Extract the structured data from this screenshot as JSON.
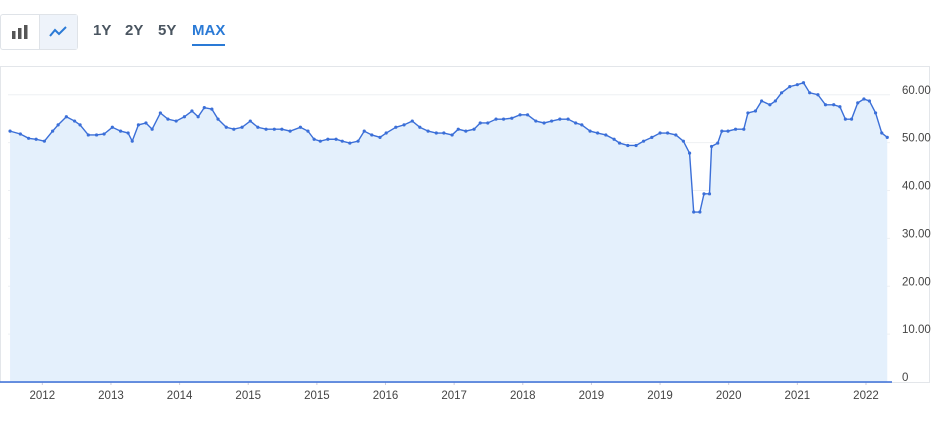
{
  "toolbar": {
    "ranges": [
      "1Y",
      "2Y",
      "5Y",
      "MAX"
    ],
    "selected": 3
  },
  "chart_data": {
    "type": "line",
    "series": [
      {
        "color": "#3b6fd8",
        "fill": "#e4f0fc",
        "x": [
          -0.47,
          -0.32,
          -0.2,
          -0.09,
          0.03,
          0.15,
          0.23,
          0.35,
          0.47,
          0.55,
          0.67,
          0.79,
          0.9,
          1.02,
          1.14,
          1.25,
          1.31,
          1.4,
          1.51,
          1.6,
          1.72,
          1.83,
          1.95,
          2.07,
          2.18,
          2.27,
          2.36,
          2.47,
          2.56,
          2.68,
          2.79,
          2.91,
          3.03,
          3.14,
          3.26,
          3.38,
          3.49,
          3.61,
          3.76,
          3.87,
          3.96,
          4.05,
          4.16,
          4.28,
          4.37,
          4.48,
          4.6,
          4.69,
          4.8,
          4.92,
          5.01,
          5.15,
          5.27,
          5.39,
          5.5,
          5.62,
          5.74,
          5.85,
          5.97,
          6.06,
          6.17,
          6.29,
          6.38,
          6.49,
          6.61,
          6.72,
          6.84,
          6.96,
          7.07,
          7.19,
          7.31,
          7.42,
          7.54,
          7.66,
          7.77,
          7.86,
          7.98,
          8.09,
          8.21,
          8.33,
          8.41,
          8.53,
          8.65,
          8.76,
          8.88,
          9.0,
          9.11,
          9.23,
          9.34,
          9.43,
          9.49,
          9.58,
          9.64,
          9.72,
          9.75,
          9.84,
          9.9,
          9.99,
          10.1,
          10.22,
          10.28,
          10.39,
          10.48,
          10.6,
          10.68,
          10.77,
          10.89,
          11.0,
          11.09,
          11.18,
          11.3,
          11.41,
          11.53,
          11.62,
          11.7,
          11.79,
          11.88,
          11.97,
          12.05,
          12.14,
          12.23,
          12.31
        ],
        "values": [
          52.4,
          51.8,
          50.9,
          50.7,
          50.3,
          52.4,
          53.7,
          55.4,
          54.5,
          53.7,
          51.6,
          51.6,
          51.8,
          53.2,
          52.4,
          52.0,
          50.3,
          53.7,
          54.1,
          52.8,
          56.2,
          54.9,
          54.5,
          55.4,
          56.6,
          55.4,
          57.3,
          57.0,
          54.9,
          53.2,
          52.8,
          53.2,
          54.5,
          53.2,
          52.8,
          52.8,
          52.8,
          52.4,
          53.2,
          52.4,
          50.7,
          50.3,
          50.7,
          50.7,
          50.3,
          49.9,
          50.3,
          52.4,
          51.6,
          51.1,
          52.0,
          53.2,
          53.7,
          54.5,
          53.2,
          52.4,
          52.0,
          52.0,
          51.6,
          52.8,
          52.4,
          52.8,
          54.1,
          54.1,
          54.9,
          54.9,
          55.1,
          55.8,
          55.8,
          54.5,
          54.1,
          54.5,
          54.9,
          54.9,
          54.1,
          53.7,
          52.4,
          52.0,
          51.6,
          50.7,
          49.9,
          49.4,
          49.4,
          50.3,
          51.1,
          52.0,
          52.0,
          51.6,
          50.3,
          47.8,
          35.5,
          35.5,
          39.3,
          39.3,
          49.2,
          49.9,
          52.4,
          52.4,
          52.8,
          52.8,
          56.2,
          56.6,
          58.7,
          57.9,
          58.7,
          60.4,
          61.7,
          62.1,
          62.5,
          60.4,
          60.0,
          57.9,
          57.9,
          57.5,
          54.9,
          54.9,
          58.3,
          59.1,
          58.7,
          56.2,
          52.0,
          51.1
        ]
      }
    ],
    "xlim": [
      -0.5,
      12.35
    ],
    "xticks": [
      {
        "value": 0,
        "label": "2012"
      },
      {
        "value": 1,
        "label": "2013"
      },
      {
        "value": 2,
        "label": "2014"
      },
      {
        "value": 3,
        "label": "2015"
      },
      {
        "value": 4,
        "label": "2015"
      },
      {
        "value": 5,
        "label": "2016"
      },
      {
        "value": 6,
        "label": "2017"
      },
      {
        "value": 7,
        "label": "2018"
      },
      {
        "value": 8,
        "label": "2019"
      },
      {
        "value": 9,
        "label": "2019"
      },
      {
        "value": 10,
        "label": "2020"
      },
      {
        "value": 11,
        "label": "2021"
      },
      {
        "value": 12,
        "label": "2022"
      }
    ],
    "ylim": [
      0,
      66
    ],
    "yticks": [
      0,
      {
        "value": 10,
        "label": "10.00"
      },
      {
        "value": 20,
        "label": "20.00"
      },
      {
        "value": 30,
        "label": "30.00"
      },
      {
        "value": 40,
        "label": "40.00"
      },
      {
        "value": 50,
        "label": "50.00"
      },
      {
        "value": 60,
        "label": "60.00"
      }
    ],
    "grid": true
  }
}
